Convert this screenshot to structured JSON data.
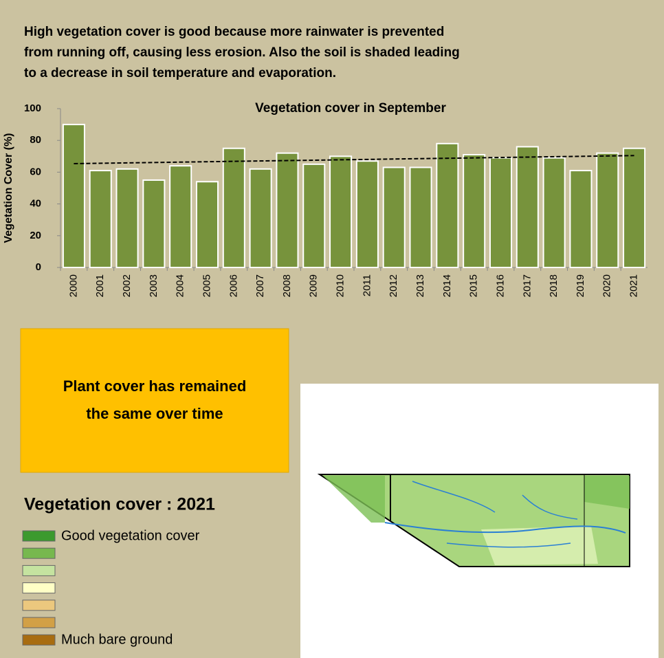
{
  "intro": [
    "High vegetation cover is good because more rainwater is prevented",
    "from running off, causing less erosion. Also the soil is shaded leading",
    "to a decrease in soil temperature and evaporation."
  ],
  "chart_data": {
    "type": "bar",
    "title": "Vegetation cover in September",
    "y_label": "Vegetation Cover (%)",
    "categories": [
      "2000",
      "2001",
      "2002",
      "2003",
      "2004",
      "2005",
      "2006",
      "2007",
      "2008",
      "2009",
      "2010",
      "2011",
      "2012",
      "2013",
      "2014",
      "2015",
      "2016",
      "2017",
      "2018",
      "2019",
      "2020",
      "2021"
    ],
    "values": [
      90,
      61,
      62,
      55,
      64,
      54,
      75,
      62,
      72,
      65,
      70,
      67,
      63,
      63,
      78,
      71,
      69,
      76,
      69,
      61,
      72,
      75
    ],
    "color": "#77933c",
    "ylim": [
      0,
      100
    ],
    "yticks": [
      0,
      20,
      40,
      60,
      80,
      100
    ],
    "grid": false,
    "trendline": "linear"
  },
  "callout": [
    "Plant cover has remained",
    "the same over time"
  ],
  "legend": {
    "title": "Vegetation cover : 2021",
    "items": [
      {
        "color": "#3c9a2e",
        "label": "Good vegetation cover"
      },
      {
        "color": "#77b84e",
        "label": null
      },
      {
        "color": "#c5e3a0",
        "label": null
      },
      {
        "color": "#ffffc6",
        "label": null
      },
      {
        "color": "#ecc87e",
        "label": null
      },
      {
        "color": "#d2a046",
        "label": null
      },
      {
        "color": "#a86c10",
        "label": "Much bare ground"
      }
    ]
  }
}
